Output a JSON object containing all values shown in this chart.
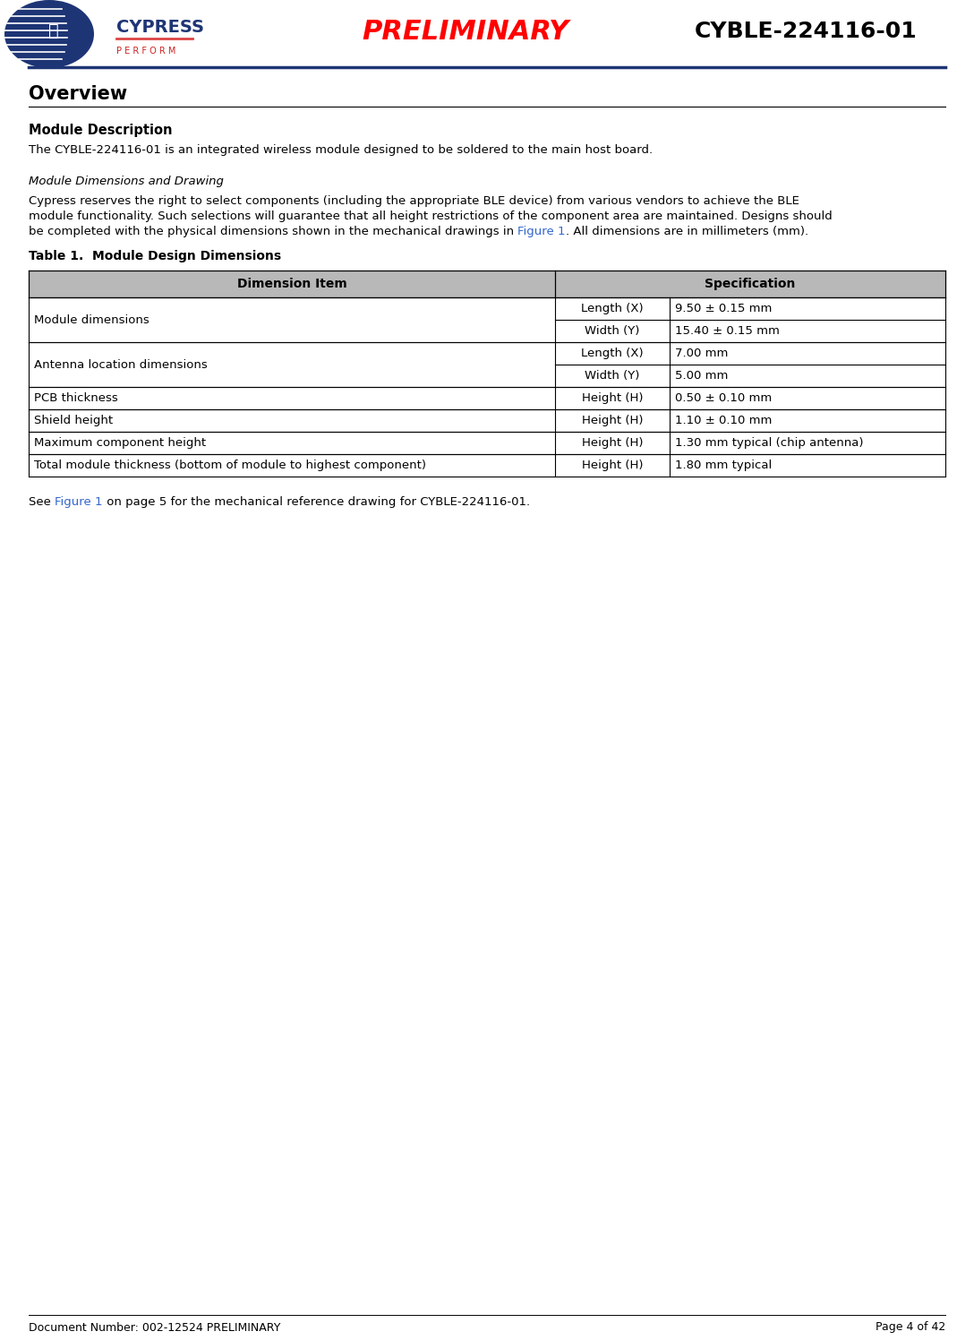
{
  "bg_color": "#ffffff",
  "header_preliminary": "PRELIMINARY",
  "header_preliminary_color": "#ff0000",
  "header_title": "CYBLE-224116-01",
  "header_title_color": "#000000",
  "footer_left": "Document Number: 002-12524 PRELIMINARY",
  "footer_right": "Page 4 of 42",
  "section_title": "Overview",
  "sub1_title": "Module Description",
  "sub1_body": "The CYBLE-224116-01 is an integrated wireless module designed to be soldered to the main host board.",
  "sub2_title": "Module Dimensions and Drawing",
  "sub2_body_line1": "Cypress reserves the right to select components (including the appropriate BLE device) from various vendors to achieve the BLE",
  "sub2_body_line2": "module functionality. Such selections will guarantee that all height restrictions of the component area are maintained. Designs should",
  "sub2_body_line3_pre": "be completed with the physical dimensions shown in the mechanical drawings in ",
  "sub2_body_line3_link": "Figure 1",
  "sub2_body_line3_post": ". All dimensions are in millimeters (mm).",
  "link_color": "#3366cc",
  "table_title": "Table 1.  Module Design Dimensions",
  "table_header_bg": "#b8b8b8",
  "table_col1_header": "Dimension Item",
  "table_col2_header": "Specification",
  "table_rows": [
    {
      "c1": "Module dimensions",
      "c2": "Length (X)",
      "c3": "9.50 ± 0.15 mm",
      "group": 0
    },
    {
      "c1": "",
      "c2": "Width (Y)",
      "c3": "15.40 ± 0.15 mm",
      "group": 0
    },
    {
      "c1": "Antenna location dimensions",
      "c2": "Length (X)",
      "c3": "7.00 mm",
      "group": 1
    },
    {
      "c1": "",
      "c2": "Width (Y)",
      "c3": "5.00 mm",
      "group": 1
    },
    {
      "c1": "PCB thickness",
      "c2": "Height (H)",
      "c3": "0.50 ± 0.10 mm",
      "group": 2
    },
    {
      "c1": "Shield height",
      "c2": "Height (H)",
      "c3": "1.10 ± 0.10 mm",
      "group": 3
    },
    {
      "c1": "Maximum component height",
      "c2": "Height (H)",
      "c3": "1.30 mm typical (chip antenna)",
      "group": 4
    },
    {
      "c1": "Total module thickness (bottom of module to highest component)",
      "c2": "Height (H)",
      "c3": "1.80 mm typical",
      "group": 5
    }
  ],
  "footnote_pre": "See ",
  "footnote_link": "Figure 1",
  "footnote_post": " on page 5 for the mechanical reference drawing for CYBLE-224116-01.",
  "logo_circle_color": "#1e3575",
  "logo_text_color": "#1e3575",
  "logo_perform_color": "#cc2222",
  "header_line_color": "#1e3575",
  "section_underline_color": "#000000",
  "table_border_color": "#000000"
}
